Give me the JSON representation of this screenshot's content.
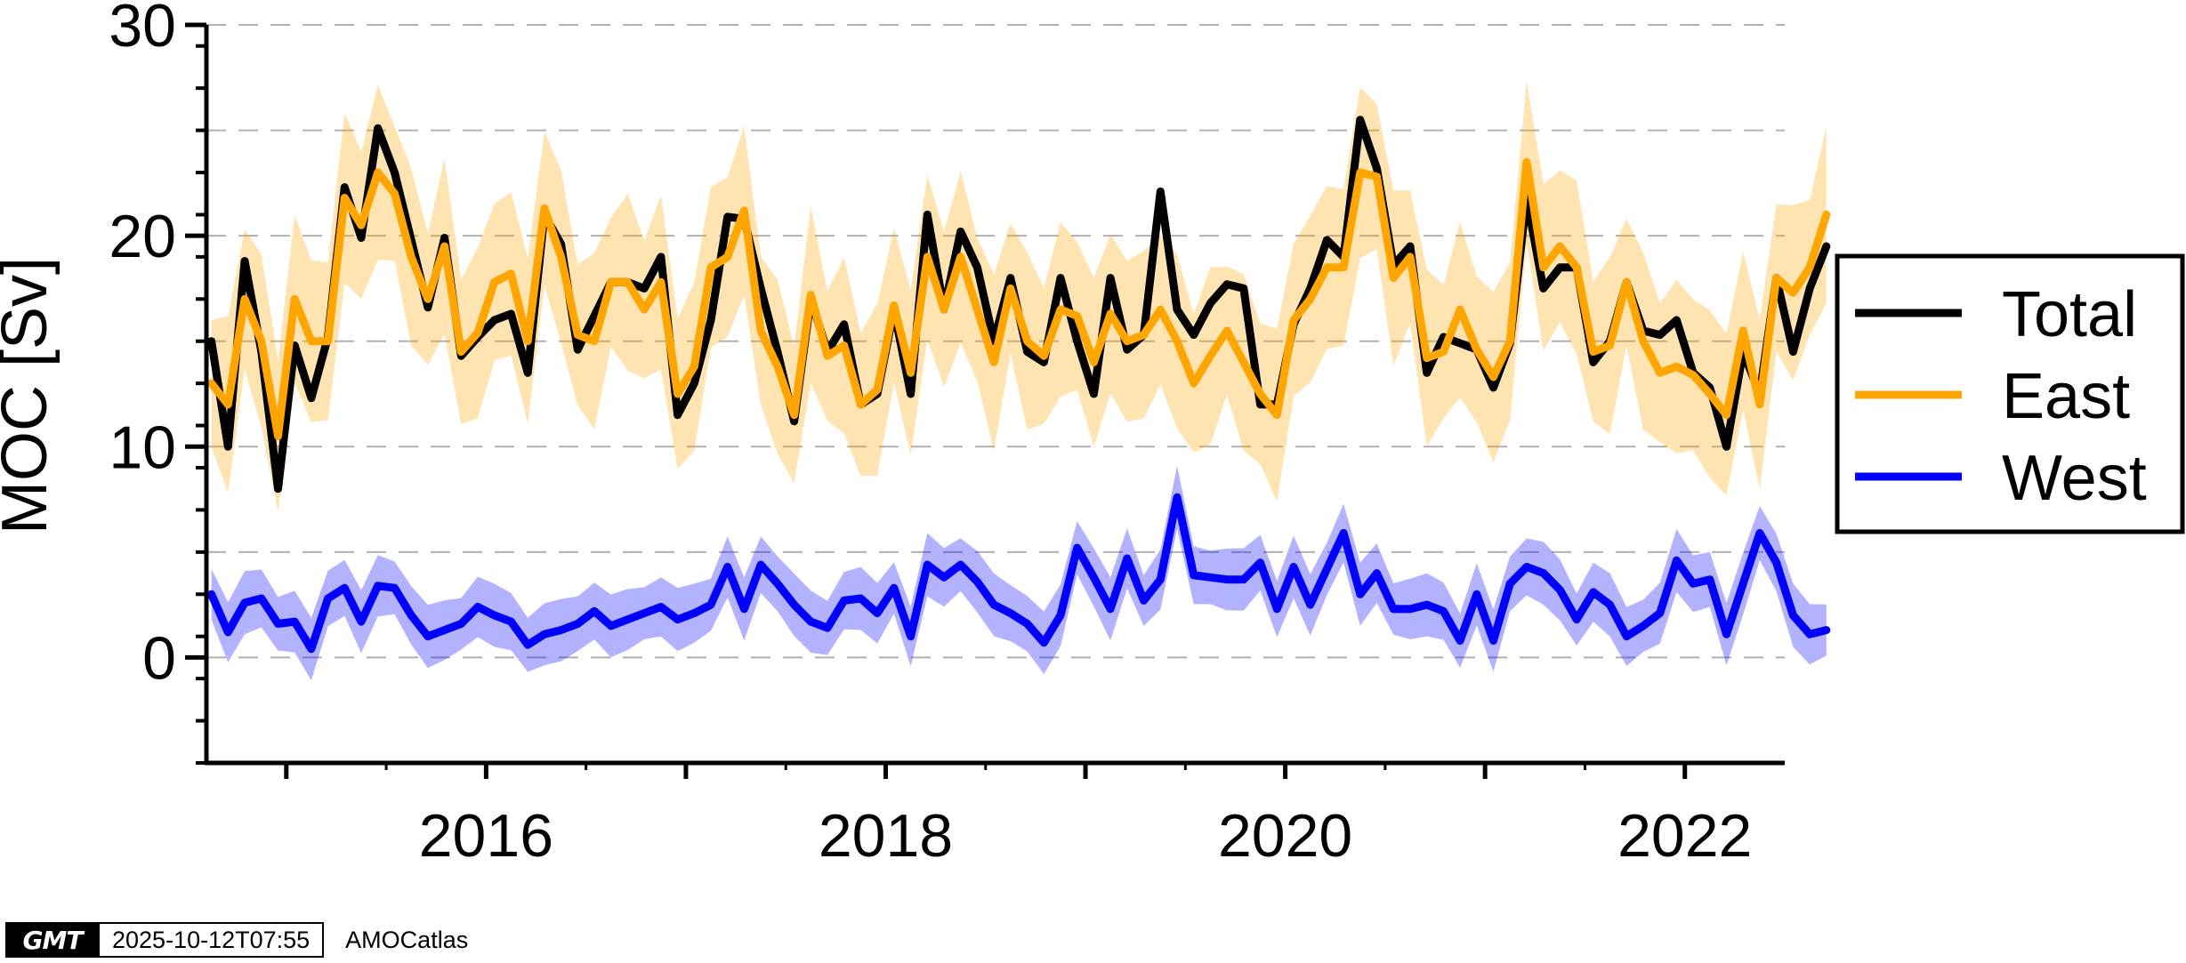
{
  "chart_data": {
    "type": "line",
    "title": "",
    "xlabel": "",
    "ylabel": "MOC [Sv]",
    "ylim": [
      -5,
      30
    ],
    "xlim": [
      2014.6,
      2022.5
    ],
    "yticks": [
      0,
      10,
      20,
      30
    ],
    "ytick_labels": [
      "0",
      "10",
      "20",
      "30"
    ],
    "xticks": [
      2016,
      2018,
      2020,
      2022
    ],
    "xtick_labels": [
      "2016",
      "2018",
      "2020",
      "2022"
    ],
    "grid": "horizontal dashed every 5",
    "legend_position": "right",
    "legend": [
      "Total",
      "East",
      "West"
    ],
    "colors": {
      "Total": "#000000",
      "East": "#ffa500",
      "West": "#0000ff",
      "East_band": "#ffa500",
      "West_band": "#0000ff"
    },
    "x_start": 2014.625,
    "x_step": 0.0833333,
    "series": [
      {
        "name": "Total",
        "color": "#000000",
        "values": [
          15,
          10,
          18.8,
          14.5,
          8,
          14.8,
          12.3,
          15.2,
          22.3,
          19.9,
          25.1,
          23,
          19.8,
          16.6,
          19.9,
          14.3,
          15.2,
          16,
          16.3,
          13.5,
          21,
          19.6,
          14.6,
          16.2,
          17.8,
          17.8,
          17.5,
          19,
          11.5,
          13,
          16,
          20.9,
          20.8,
          17.5,
          14.5,
          11.2,
          17,
          14.5,
          15.8,
          12,
          12.5,
          16.5,
          12.5,
          21,
          16.5,
          20.2,
          18.5,
          15,
          18,
          14.5,
          14,
          18,
          15,
          12.5,
          18,
          14.6,
          15.3,
          22.1,
          16.5,
          15.3,
          16.8,
          17.7,
          17.5,
          12,
          12,
          15.8,
          17.5,
          19.8,
          19,
          25.5,
          23.2,
          18.6,
          19.5,
          13.5,
          15.2,
          14.9,
          14.6,
          12.8,
          14.9,
          21.8,
          17.5,
          18.5,
          18.5,
          14,
          15,
          17.8,
          15.5,
          15.3,
          16,
          13.5,
          12.8,
          10,
          14.5,
          12.5,
          18,
          14.5,
          17.5,
          19.5
        ]
      },
      {
        "name": "East",
        "color": "#ffa500",
        "values": [
          13,
          12,
          17,
          15,
          10.5,
          17,
          15,
          15,
          21.8,
          20.5,
          23,
          22,
          19,
          17,
          19.5,
          14.5,
          15.4,
          17.8,
          18.2,
          15,
          21.3,
          19,
          15.3,
          15,
          17.8,
          17.8,
          16.5,
          17.8,
          12.5,
          13.8,
          18.5,
          19,
          21.2,
          15.5,
          13.8,
          11.5,
          17.2,
          14.3,
          14.8,
          12,
          12.7,
          16.7,
          13.5,
          19,
          16.5,
          19,
          16.5,
          14,
          17.5,
          15,
          14.3,
          16.5,
          16.2,
          14,
          16.3,
          15,
          15.3,
          16.5,
          15,
          13,
          14.3,
          15.5,
          14,
          12.5,
          11.5,
          16,
          17,
          18.5,
          18.5,
          23,
          22.8,
          18,
          19,
          14.2,
          14.5,
          16.5,
          14.6,
          13.3,
          15,
          23.5,
          18.5,
          19.5,
          18.5,
          14.5,
          14.8,
          17.8,
          15,
          13.5,
          13.8,
          13.4,
          12.5,
          11.5,
          15.5,
          12,
          18,
          17.3,
          18.5,
          21
        ]
      },
      {
        "name": "West",
        "color": "#0000ff",
        "values": [
          3,
          1.2,
          2.6,
          2.8,
          1.6,
          1.7,
          0.4,
          2.8,
          3.3,
          1.7,
          3.4,
          3.3,
          2,
          1,
          1.3,
          1.6,
          2.4,
          2,
          1.7,
          0.6,
          1.1,
          1.3,
          1.6,
          2.2,
          1.5,
          1.8,
          2.1,
          2.4,
          1.8,
          2.1,
          2.5,
          4.3,
          2.3,
          4.4,
          3.5,
          2.5,
          1.7,
          1.4,
          2.7,
          2.8,
          2.1,
          3.3,
          1,
          4.4,
          3.8,
          4.4,
          3.6,
          2.5,
          2.1,
          1.6,
          0.7,
          2,
          5.2,
          3.8,
          2.3,
          4.7,
          2.7,
          3.7,
          7.6,
          3.9,
          3.8,
          3.7,
          3.7,
          4.5,
          2.3,
          4.3,
          2.5,
          4.2,
          5.9,
          3,
          4,
          2.3,
          2.3,
          2.5,
          2.2,
          0.8,
          3,
          0.8,
          3.5,
          4.3,
          4,
          3.2,
          1.8,
          3.1,
          2.5,
          1,
          1.5,
          2.1,
          4.6,
          3.5,
          3.7,
          1.1,
          3.5,
          5.9,
          4.5,
          2,
          1.1,
          1.3
        ]
      }
    ]
  },
  "footer": {
    "logo_text": "GMT",
    "timestamp": "2025-10-12T07:55",
    "source": "AMOCatlas"
  }
}
